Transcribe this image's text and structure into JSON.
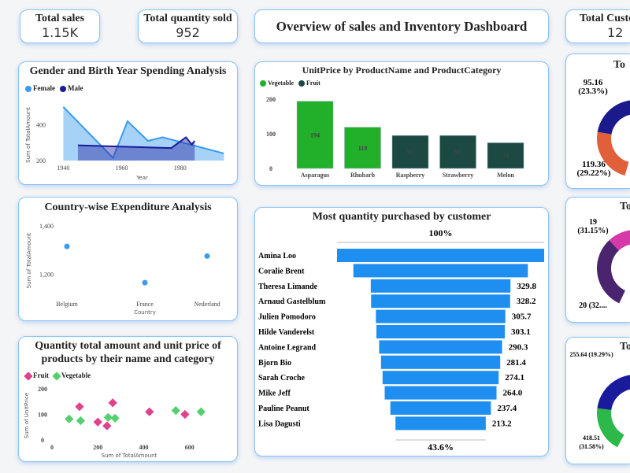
{
  "kpis": {
    "total_sales": {
      "label": "Total sales",
      "value": "1.15K"
    },
    "total_quantity": {
      "label": "Total quantity sold",
      "value": "952"
    },
    "total_customers": {
      "label": "Total Custo",
      "value": "12"
    }
  },
  "dashboard_title": "Overview of sales and Inventory Dashboard",
  "colors": {
    "female": "#3a9bf0",
    "male": "#1a1a9c",
    "vegetable": "#22b02a",
    "fruit": "#1c4a42",
    "funnel": "#1e8ef0",
    "scatter_fruit": "#e0428c",
    "scatter_veg": "#55d070"
  },
  "chart_data": [
    {
      "type": "area",
      "title": "Gender and Birth Year Spending Analysis",
      "xlabel": "Year",
      "ylabel": "Sum of TotalAmount",
      "xticks": [
        "1940",
        "1960",
        "1980"
      ],
      "yticks": [
        "200",
        "400"
      ],
      "xlim": [
        1938,
        1996
      ],
      "ylim": [
        200,
        530
      ],
      "legend": "top-left",
      "series": [
        {
          "name": "Female",
          "x": [
            1940,
            1957,
            1962,
            1969,
            1974,
            1981,
            1995
          ],
          "y": [
            500,
            215,
            420,
            310,
            330,
            300,
            240
          ]
        },
        {
          "name": "Male",
          "x": [
            1945,
            1977,
            1982,
            1984,
            1985
          ],
          "y": [
            285,
            270,
            330,
            290,
            310
          ]
        }
      ]
    },
    {
      "type": "scatter",
      "title": "Country-wise Expenditure Analysis",
      "xlabel": "Country",
      "ylabel": "Sum of TotalAmount",
      "categories": [
        "Belgium",
        "France",
        "Nederland"
      ],
      "values": [
        1315,
        1165,
        1275
      ],
      "yticks": [
        "1,400",
        "1,200"
      ],
      "ylim": [
        1100,
        1420
      ]
    },
    {
      "type": "scatter",
      "title": "Quantity total amount and unit price of products by their name and category",
      "xlabel": "Sum of TotalAmount",
      "ylabel": "Sum of UnitPrice",
      "xticks": [
        "0",
        "200",
        "400",
        "600"
      ],
      "yticks": [
        "200",
        "100",
        "0"
      ],
      "xlim": [
        0,
        680
      ],
      "ylim": [
        0,
        200
      ],
      "legend": "top-left",
      "series": [
        {
          "name": "Fruit",
          "x": [
            120,
            200,
            240,
            265,
            425,
            580
          ],
          "y": [
            130,
            70,
            55,
            145,
            110,
            100
          ]
        },
        {
          "name": "Vegetable",
          "x": [
            75,
            125,
            245,
            275,
            540,
            650
          ],
          "y": [
            82,
            75,
            88,
            85,
            115,
            110
          ]
        }
      ]
    },
    {
      "type": "bar",
      "title": "UnitPrice by ProductName and ProductCategory",
      "categories": [
        "Asparagus",
        "Rhubarb",
        "Raspberry",
        "Strawberry",
        "Melon"
      ],
      "values": [
        194,
        119,
        95,
        95,
        74
      ],
      "labels": [
        "194",
        "119",
        "95",
        "95",
        "74"
      ],
      "groups": [
        "Vegetable",
        "Vegetable",
        "Fruit",
        "Fruit",
        "Fruit"
      ],
      "legend_items": [
        "Vegetable",
        "Fruit"
      ],
      "yticks": [
        "200",
        "100",
        "0"
      ],
      "ylim": [
        0,
        200
      ]
    },
    {
      "type": "funnel",
      "title": "Most quantity purchased by customer",
      "top_label": "100%",
      "bottom_label": "43.6%",
      "categories": [
        "Amina Loo",
        "Coralie Brent",
        "Theresa Limande",
        "Arnaud Gastelblum",
        "Julien Pomodoro",
        "Hilde Vanderelst",
        "Antoine Legrand",
        "Bjorn Bio",
        "Sarah Croche",
        "Mike Jeff",
        "Pauline Peanut",
        "Lisa Dagusti"
      ],
      "values": [
        489,
        412,
        329.8,
        328.2,
        305.7,
        303.1,
        290.3,
        281.4,
        274.1,
        264.0,
        237.4,
        213.2
      ],
      "labels": [
        "",
        "",
        "329.8",
        "328.2",
        "305.7",
        "303.1",
        "290.3",
        "281.4",
        "274.1",
        "264.0",
        "237.4",
        "213.2"
      ]
    },
    {
      "type": "pie",
      "title": "To",
      "slices": [
        {
          "label": "95.16\n(23.3%)",
          "l1": "95.16",
          "l2": "(23.3%)",
          "pct": 23.3,
          "color": "#e0603a"
        },
        {
          "l1": "119.36",
          "l2": "(29.22%)",
          "pct": 29.22,
          "color": "#1a1a8c"
        }
      ]
    },
    {
      "type": "pie",
      "title": "To",
      "slices": [
        {
          "l1": "19",
          "l2": "(31.15%)",
          "pct": 31.15,
          "color": "#4b2470"
        },
        {
          "l1": "20 (32....",
          "l2": "",
          "pct": 32.8,
          "color": "#d63aa8"
        }
      ]
    },
    {
      "type": "pie",
      "title": "To",
      "slices": [
        {
          "l1": "255.64 (19.29%)",
          "l2": "",
          "pct": 19.29,
          "color": "#2db84a"
        },
        {
          "l1": "418.51",
          "l2": "(31.58%)",
          "pct": 31.58,
          "color": "#1a1a9c"
        }
      ]
    }
  ]
}
